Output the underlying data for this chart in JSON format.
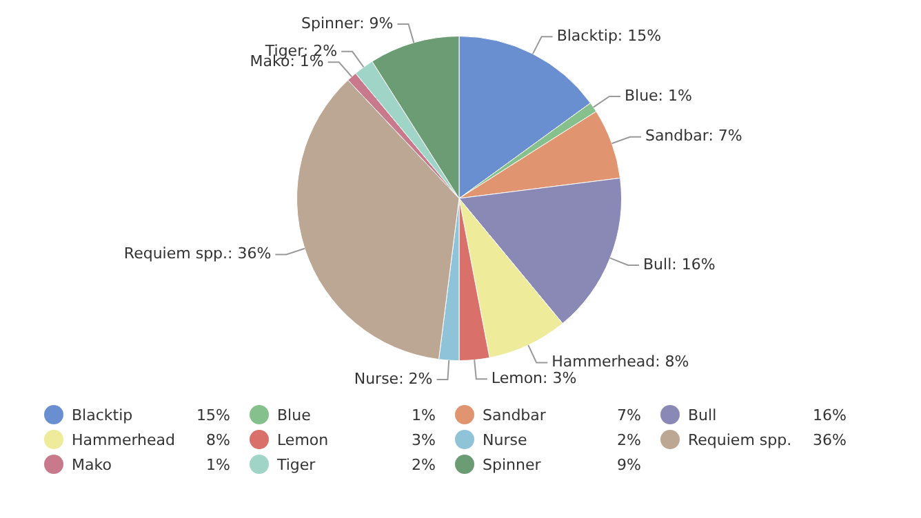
{
  "chart_data": {
    "type": "pie",
    "categories": [
      "Blacktip",
      "Blue",
      "Sandbar",
      "Bull",
      "Hammerhead",
      "Lemon",
      "Nurse",
      "Requiem spp.",
      "Mako",
      "Tiger",
      "Spinner"
    ],
    "values": [
      15,
      1,
      7,
      16,
      8,
      3,
      2,
      36,
      1,
      2,
      9
    ],
    "value_labels": [
      "15%",
      "1%",
      "7%",
      "16%",
      "8%",
      "3%",
      "2%",
      "36%",
      "1%",
      "2%",
      "9%"
    ],
    "annotations": [
      "Blacktip: 15%",
      "Blue: 1%",
      "Sandbar: 7%",
      "Bull: 16%",
      "Hammerhead: 8%",
      "Lemon: 3%",
      "Nurse: 2%",
      "Requiem spp.: 36%",
      "Mako: 1%",
      "Tiger: 2%",
      "Spinner: 9%"
    ],
    "colors": [
      "#6a8fd0",
      "#86c08c",
      "#e09570",
      "#8a88b4",
      "#eeec9a",
      "#d9706a",
      "#8fc3d8",
      "#bba793",
      "#c8798b",
      "#9fd4c6",
      "#6c9c74"
    ],
    "legend": "bottom"
  }
}
